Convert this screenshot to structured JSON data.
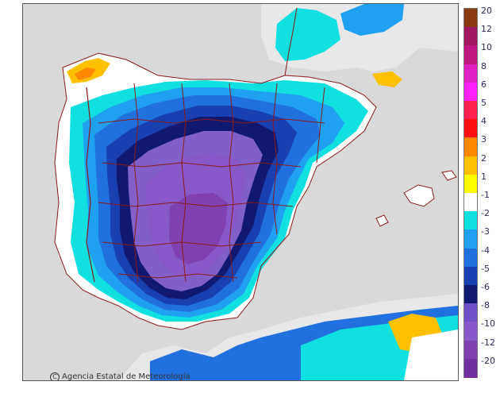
{
  "map": {
    "credit": "Agencia Estatal de Meteorología",
    "copyright_symbol": "C"
  },
  "legend": {
    "entries": [
      {
        "label": "20",
        "color": "#8a3a10"
      },
      {
        "label": "12",
        "color": "#a01860"
      },
      {
        "label": "10",
        "color": "#c01880"
      },
      {
        "label": "8",
        "color": "#e020c0"
      },
      {
        "label": "6",
        "color": "#ff20ff"
      },
      {
        "label": "5",
        "color": "#ff2050"
      },
      {
        "label": "4",
        "color": "#ff1010"
      },
      {
        "label": "3",
        "color": "#ff8800"
      },
      {
        "label": "2",
        "color": "#ffc000"
      },
      {
        "label": "1",
        "color": "#ffff00"
      },
      {
        "label": "-1",
        "color": "#ffffff"
      },
      {
        "label": "-2",
        "color": "#10e0e0"
      },
      {
        "label": "-3",
        "color": "#20a0f0"
      },
      {
        "label": "-4",
        "color": "#2070e0"
      },
      {
        "label": "-5",
        "color": "#1840b0"
      },
      {
        "label": "-6",
        "color": "#101870"
      },
      {
        "label": "-8",
        "color": "#7050c8"
      },
      {
        "label": "-10",
        "color": "#8858c8"
      },
      {
        "label": "-12",
        "color": "#8040b0"
      },
      {
        "label": "-20",
        "color": "#7030a0"
      }
    ]
  }
}
